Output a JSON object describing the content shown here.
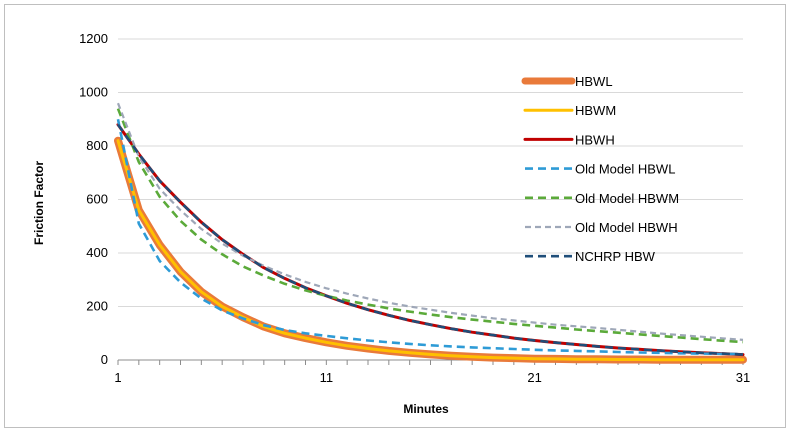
{
  "chart_data": {
    "type": "line",
    "title": "",
    "xlabel": "Minutes",
    "ylabel": "Friction Factor",
    "xlim": [
      1,
      31
    ],
    "ylim": [
      0,
      1200
    ],
    "x_ticks": [
      1,
      11,
      21,
      31
    ],
    "y_ticks": [
      0,
      200,
      400,
      600,
      800,
      1000,
      1200
    ],
    "grid": "horizontal",
    "legend_position": "right",
    "x": [
      1,
      2,
      3,
      4,
      5,
      6,
      7,
      8,
      9,
      10,
      11,
      12,
      13,
      14,
      15,
      16,
      17,
      18,
      19,
      20,
      21,
      22,
      23,
      24,
      25,
      26,
      27,
      28,
      29,
      30,
      31
    ],
    "series": [
      {
        "name": "HBWL",
        "color": "#E97A3A",
        "style": "solid-thick",
        "values": [
          820,
          560,
          430,
          330,
          255,
          200,
          160,
          125,
          100,
          82,
          66,
          53,
          43,
          34,
          27,
          21,
          16,
          12,
          9,
          7,
          5,
          4,
          3,
          3,
          2,
          2,
          1,
          1,
          1,
          1,
          1
        ]
      },
      {
        "name": "HBWM",
        "color": "#FFC000",
        "style": "solid",
        "values": [
          820,
          560,
          430,
          330,
          255,
          200,
          160,
          125,
          100,
          82,
          66,
          53,
          43,
          34,
          27,
          21,
          16,
          12,
          9,
          7,
          5,
          4,
          3,
          3,
          2,
          2,
          1,
          1,
          1,
          1,
          1
        ]
      },
      {
        "name": "HBWH",
        "color": "#C00000",
        "style": "solid",
        "values": [
          880,
          770,
          670,
          590,
          515,
          450,
          395,
          345,
          305,
          270,
          240,
          212,
          188,
          167,
          148,
          132,
          117,
          104,
          93,
          82,
          73,
          65,
          58,
          51,
          45,
          40,
          35,
          31,
          27,
          24,
          20
        ]
      },
      {
        "name": "Old Model HBWL",
        "color": "#2E9BD6",
        "style": "dashed",
        "values": [
          900,
          510,
          370,
          290,
          230,
          185,
          155,
          130,
          112,
          100,
          90,
          81,
          73,
          66,
          60,
          55,
          51,
          47,
          44,
          41,
          38,
          36,
          34,
          32,
          30,
          28,
          27,
          25,
          24,
          23,
          22
        ]
      },
      {
        "name": "Old Model HBWM",
        "color": "#5BAA3A",
        "style": "dashed",
        "values": [
          940,
          740,
          610,
          520,
          450,
          395,
          350,
          315,
          285,
          260,
          240,
          222,
          207,
          193,
          181,
          170,
          160,
          151,
          143,
          135,
          128,
          121,
          114,
          108,
          102,
          96,
          90,
          84,
          78,
          72,
          67
        ]
      },
      {
        "name": "Old Model HBWH",
        "color": "#9EA7B8",
        "style": "dashed",
        "values": [
          960,
          760,
          640,
          560,
          490,
          435,
          390,
          352,
          320,
          292,
          268,
          248,
          230,
          214,
          200,
          188,
          176,
          166,
          156,
          148,
          140,
          132,
          126,
          120,
          113,
          106,
          99,
          93,
          87,
          81,
          75
        ]
      },
      {
        "name": "NCHRP HBW",
        "color": "#1F4E79",
        "style": "dashed",
        "values": [
          880,
          770,
          670,
          590,
          515,
          450,
          395,
          345,
          305,
          270,
          240,
          212,
          188,
          167,
          148,
          132,
          117,
          104,
          93,
          82,
          73,
          65,
          58,
          51,
          45,
          40,
          35,
          31,
          27,
          24,
          20
        ]
      }
    ]
  }
}
